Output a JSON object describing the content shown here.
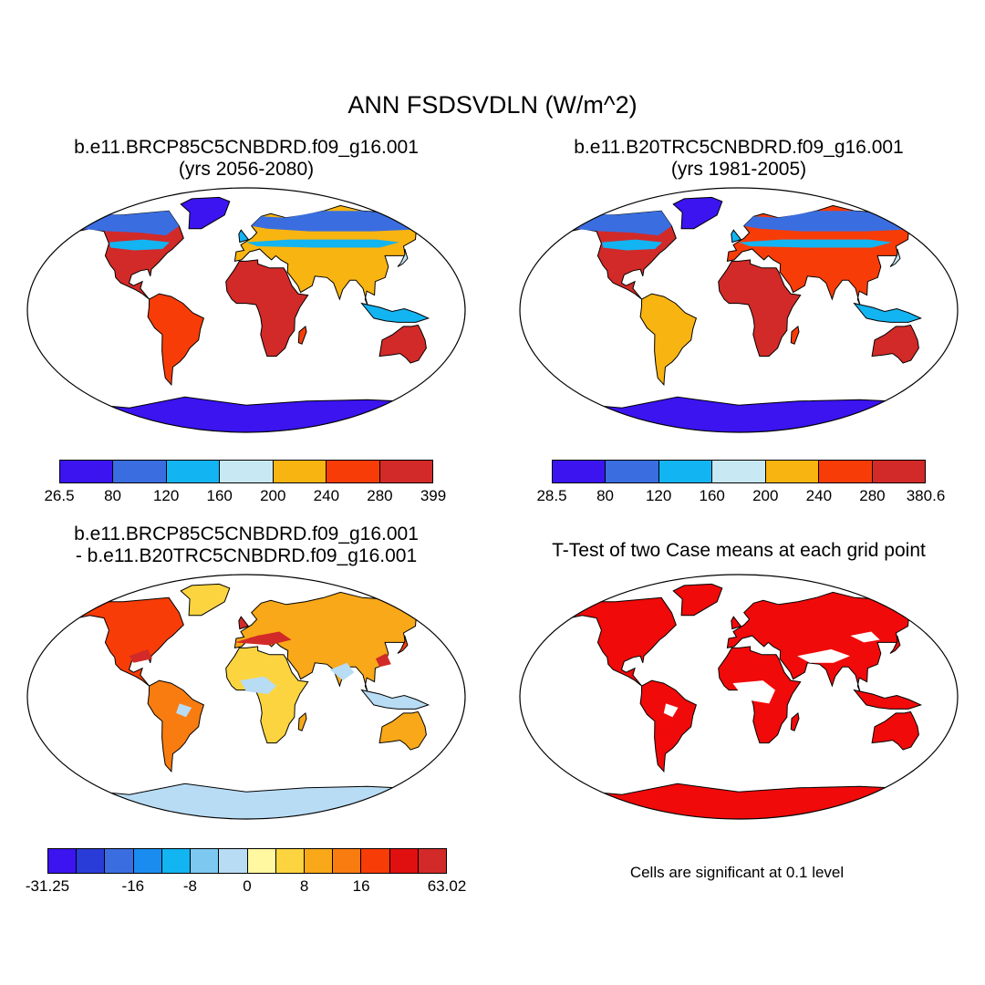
{
  "main_title": "ANN FSDSVDLN (W/m^2)",
  "panels": [
    {
      "title_line1": "b.e11.BRCP85C5CNBDRD.f09_g16.001",
      "title_line2": "(yrs 2056-2080)",
      "colorbar": {
        "colors": [
          "#3b14f0",
          "#3a6ee0",
          "#13b4f2",
          "#c8e8f4",
          "#f8b410",
          "#f83c08",
          "#d22a28"
        ],
        "labels": [
          "26.5",
          "80",
          "120",
          "160",
          "200",
          "240",
          "280",
          "399"
        ]
      }
    },
    {
      "title_line1": "b.e11.B20TRC5CNBDRD.f09_g16.001",
      "title_line2": "(yrs 1981-2005)",
      "colorbar": {
        "colors": [
          "#3b14f0",
          "#3a6ee0",
          "#13b4f2",
          "#c8e8f4",
          "#f8b410",
          "#f83c08",
          "#d22a28"
        ],
        "labels": [
          "28.5",
          "80",
          "120",
          "160",
          "200",
          "240",
          "280",
          "380.6"
        ]
      }
    },
    {
      "title_line1": "b.e11.BRCP85C5CNBDRD.f09_g16.001",
      "title_line2": "- b.e11.B20TRC5CNBDRD.f09_g16.001",
      "colorbar": {
        "colors": [
          "#3b14f0",
          "#2a3cd8",
          "#3a6ee0",
          "#1a8cf0",
          "#13b4f2",
          "#7cc8f0",
          "#b8dcf4",
          "#fff8a0",
          "#fcd440",
          "#f8a818",
          "#f87c10",
          "#f83c08",
          "#e01010",
          "#d22a28"
        ],
        "labels": [
          "-31.25",
          "-16",
          "-8",
          "0",
          "8",
          "16",
          "63.02"
        ]
      }
    },
    {
      "title_line1": "T-Test of two Case means at each grid point",
      "note": "Cells are significant at 0.1 level"
    }
  ]
}
